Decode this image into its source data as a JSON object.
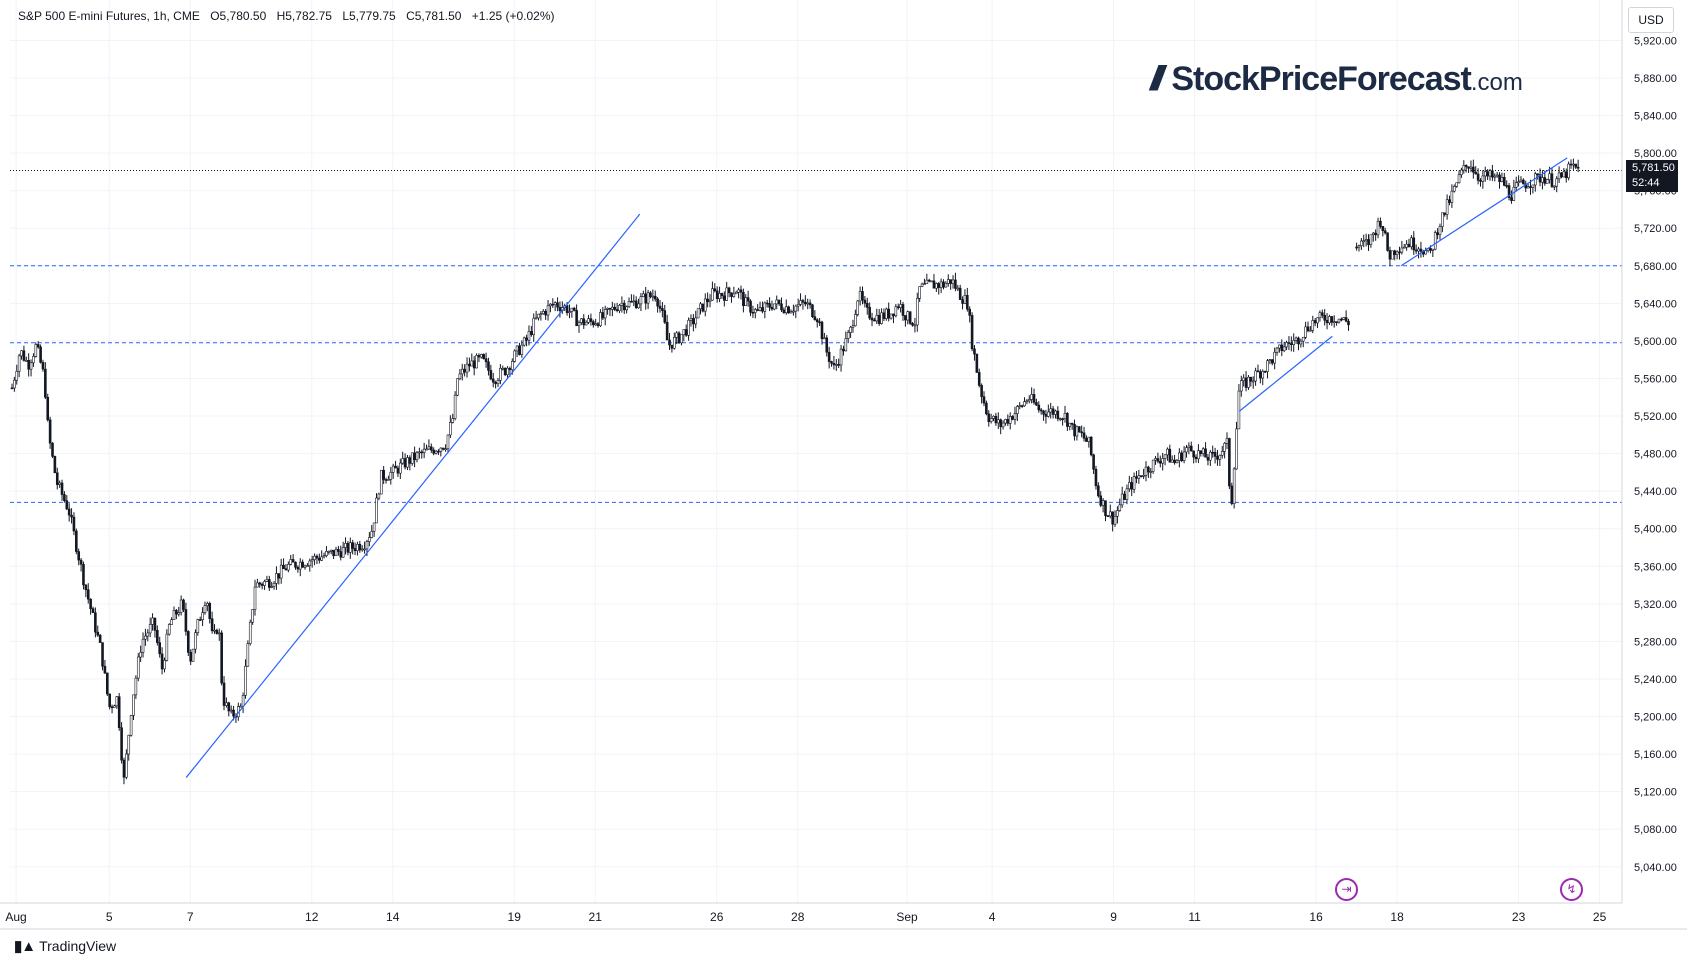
{
  "header": {
    "symbol": "S&P 500 E-mini Futures, 1h, CME",
    "open": "O5,780.50",
    "high": "H5,782.75",
    "low": "L5,779.75",
    "close": "C5,781.50",
    "change": "+1.25 (+0.02%)"
  },
  "currency": "USD",
  "last_price": {
    "price": "5,781.50",
    "countdown": "52:44"
  },
  "logo": {
    "bars": "///",
    "main": "StockPriceForecast",
    "tld": ".com"
  },
  "footer": {
    "brand": "TradingView",
    "icon": "TV-logo-icon"
  },
  "colors": {
    "candles": "#131722",
    "trendline": "#2962ff",
    "support": "#2962ff",
    "accent": "#9c27b0"
  },
  "chart_data": {
    "type": "candlestick",
    "interval": "1h",
    "ylim": [
      5000,
      5940
    ],
    "y_ticks": [
      5040,
      5080,
      5120,
      5160,
      5200,
      5240,
      5280,
      5320,
      5360,
      5400,
      5440,
      5480,
      5520,
      5560,
      5600,
      5640,
      5680,
      5720,
      5760,
      5800,
      5840,
      5880,
      5920
    ],
    "y_tick_labels": [
      "5,040.00",
      "5,080.00",
      "5,120.00",
      "5,160.00",
      "5,200.00",
      "5,240.00",
      "5,280.00",
      "5,320.00",
      "5,360.00",
      "5,400.00",
      "5,440.00",
      "5,480.00",
      "5,520.00",
      "5,560.00",
      "5,600.00",
      "5,640.00",
      "5,680.00",
      "5,720.00",
      "5,760.00",
      "5,800.00",
      "5,840.00",
      "5,880.00",
      "5,920.00"
    ],
    "x_labels": [
      {
        "label": "Aug",
        "t": 0.5
      },
      {
        "label": "5",
        "t": 12
      },
      {
        "label": "7",
        "t": 22
      },
      {
        "label": "12",
        "t": 37
      },
      {
        "label": "14",
        "t": 47
      },
      {
        "label": "19",
        "t": 62
      },
      {
        "label": "21",
        "t": 72
      },
      {
        "label": "26",
        "t": 87
      },
      {
        "label": "28",
        "t": 97
      },
      {
        "label": "Sep",
        "t": 110.5
      },
      {
        "label": "4",
        "t": 121
      },
      {
        "label": "9",
        "t": 136
      },
      {
        "label": "11",
        "t": 146
      },
      {
        "label": "16",
        "t": 161
      },
      {
        "label": "18",
        "t": 171
      },
      {
        "label": "23",
        "t": 186
      },
      {
        "label": "25",
        "t": 196
      }
    ],
    "price_path": [
      [
        0,
        5550
      ],
      [
        1,
        5590
      ],
      [
        2,
        5575
      ],
      [
        3,
        5595
      ],
      [
        4,
        5560
      ],
      [
        4.5,
        5500
      ],
      [
        5.5,
        5450
      ],
      [
        7,
        5420
      ],
      [
        9,
        5340
      ],
      [
        11,
        5270
      ],
      [
        12,
        5210
      ],
      [
        13,
        5220
      ],
      [
        13.8,
        5130
      ],
      [
        14.8,
        5215
      ],
      [
        16,
        5280
      ],
      [
        17.5,
        5300
      ],
      [
        18.5,
        5250
      ],
      [
        19.5,
        5300
      ],
      [
        21,
        5320
      ],
      [
        22,
        5260
      ],
      [
        23,
        5300
      ],
      [
        24,
        5330
      ],
      [
        24.8,
        5280
      ],
      [
        25.5,
        5300
      ],
      [
        26,
        5220
      ],
      [
        27,
        5200
      ],
      [
        28.3,
        5210
      ],
      [
        30,
        5340
      ],
      [
        32,
        5345
      ],
      [
        34,
        5360
      ],
      [
        36,
        5365
      ],
      [
        38,
        5370
      ],
      [
        40,
        5375
      ],
      [
        42,
        5380
      ],
      [
        43.5,
        5385
      ],
      [
        44.5,
        5400
      ],
      [
        45.5,
        5455
      ],
      [
        47,
        5460
      ],
      [
        48.5,
        5470
      ],
      [
        50.5,
        5480
      ],
      [
        52,
        5485
      ],
      [
        53.5,
        5490
      ],
      [
        54.5,
        5520
      ],
      [
        55,
        5560
      ],
      [
        56.5,
        5575
      ],
      [
        58,
        5580
      ],
      [
        59.5,
        5560
      ],
      [
        61,
        5570
      ],
      [
        62.5,
        5590
      ],
      [
        63.5,
        5600
      ],
      [
        64.5,
        5620
      ],
      [
        65.5,
        5630
      ],
      [
        67,
        5640
      ],
      [
        68.5,
        5635
      ],
      [
        70,
        5620
      ],
      [
        71.5,
        5620
      ],
      [
        73,
        5625
      ],
      [
        75,
        5640
      ],
      [
        76.5,
        5640
      ],
      [
        78,
        5645
      ],
      [
        79.5,
        5650
      ],
      [
        80.5,
        5620
      ],
      [
        81,
        5595
      ],
      [
        82.5,
        5605
      ],
      [
        84,
        5620
      ],
      [
        85.5,
        5640
      ],
      [
        86.5,
        5650
      ],
      [
        88,
        5650
      ],
      [
        89.5,
        5655
      ],
      [
        90.5,
        5640
      ],
      [
        92,
        5630
      ],
      [
        94,
        5640
      ],
      [
        96,
        5635
      ],
      [
        98,
        5640
      ],
      [
        99.5,
        5625
      ],
      [
        100.5,
        5590
      ],
      [
        101.5,
        5570
      ],
      [
        102.5,
        5590
      ],
      [
        103.5,
        5610
      ],
      [
        104.5,
        5650
      ],
      [
        105.5,
        5630
      ],
      [
        107,
        5625
      ],
      [
        108.5,
        5630
      ],
      [
        109.5,
        5640
      ],
      [
        110.5,
        5625
      ],
      [
        111.5,
        5620
      ],
      [
        112,
        5655
      ],
      [
        113.5,
        5660
      ],
      [
        115,
        5660
      ],
      [
        116,
        5665
      ],
      [
        117,
        5650
      ],
      [
        118,
        5640
      ],
      [
        118.5,
        5600
      ],
      [
        119.5,
        5550
      ],
      [
        120.5,
        5520
      ],
      [
        122,
        5510
      ],
      [
        124,
        5525
      ],
      [
        125.5,
        5540
      ],
      [
        127,
        5525
      ],
      [
        128.5,
        5525
      ],
      [
        130,
        5520
      ],
      [
        131,
        5505
      ],
      [
        132,
        5500
      ],
      [
        133,
        5490
      ],
      [
        134,
        5440
      ],
      [
        135,
        5420
      ],
      [
        136,
        5410
      ],
      [
        137,
        5430
      ],
      [
        138,
        5445
      ],
      [
        139.5,
        5460
      ],
      [
        141,
        5470
      ],
      [
        142.5,
        5480
      ],
      [
        143.5,
        5470
      ],
      [
        145,
        5485
      ],
      [
        146.5,
        5480
      ],
      [
        148,
        5475
      ],
      [
        149,
        5480
      ],
      [
        150,
        5490
      ],
      [
        150.5,
        5420
      ],
      [
        151.5,
        5550
      ],
      [
        153,
        5560
      ],
      [
        154.5,
        5570
      ],
      [
        155.5,
        5580
      ],
      [
        157,
        5595
      ],
      [
        158.5,
        5600
      ],
      [
        159.5,
        5610
      ],
      [
        160.5,
        5620
      ],
      [
        162,
        5625
      ],
      [
        163.5,
        5625
      ],
      [
        165,
        5620
      ]
    ],
    "price_path_2": [
      [
        166,
        5700
      ],
      [
        167.5,
        5705
      ],
      [
        169,
        5730
      ],
      [
        170,
        5690
      ],
      [
        171,
        5700
      ],
      [
        172.5,
        5705
      ],
      [
        174,
        5700
      ],
      [
        175,
        5690
      ],
      [
        176,
        5720
      ],
      [
        177,
        5740
      ],
      [
        178,
        5760
      ],
      [
        179,
        5780
      ],
      [
        180,
        5790
      ],
      [
        181,
        5775
      ],
      [
        182.5,
        5775
      ],
      [
        184,
        5770
      ],
      [
        185,
        5755
      ],
      [
        186,
        5765
      ],
      [
        187.5,
        5770
      ],
      [
        189,
        5775
      ],
      [
        190.5,
        5770
      ],
      [
        191.5,
        5775
      ],
      [
        192.5,
        5785
      ],
      [
        193.5,
        5782
      ]
    ],
    "trendlines": [
      {
        "from": [
          21.5,
          5135
        ],
        "to": [
          77.5,
          5735
        ]
      },
      {
        "from": [
          151.5,
          5525
        ],
        "to": [
          163,
          5605
        ]
      },
      {
        "from": [
          171.5,
          5680
        ],
        "to": [
          192,
          5795
        ]
      }
    ],
    "support_levels": [
      5680,
      5598,
      5428
    ],
    "last_price": 5781.5,
    "event_markers": [
      {
        "icon": "dividend-arrow-icon",
        "t": 165.5
      },
      {
        "icon": "lightning-event-icon",
        "t": 192.5
      }
    ]
  }
}
